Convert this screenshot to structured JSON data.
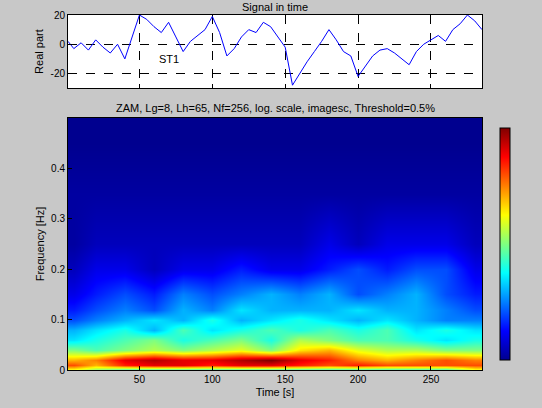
{
  "chart_data": [
    {
      "type": "line",
      "title": "Signal in time",
      "y_label": "Real part",
      "annotations": [
        {
          "text": "ST1",
          "x": 70,
          "y": -10
        }
      ],
      "color": "#0000ff",
      "x": [
        1,
        5,
        10,
        15,
        20,
        25,
        30,
        35,
        40,
        45,
        50,
        55,
        60,
        65,
        70,
        75,
        80,
        85,
        90,
        95,
        100,
        105,
        110,
        115,
        120,
        125,
        130,
        135,
        140,
        145,
        150,
        155,
        160,
        165,
        170,
        175,
        180,
        185,
        190,
        195,
        200,
        205,
        210,
        215,
        220,
        225,
        230,
        235,
        240,
        245,
        250,
        255,
        260,
        265,
        270,
        275,
        280,
        285
      ],
      "values": [
        2,
        -3,
        1,
        -4,
        3,
        -2,
        -6,
        0,
        -10,
        5,
        20,
        17,
        12,
        8,
        15,
        5,
        -5,
        2,
        6,
        10,
        19,
        8,
        -8,
        -3,
        5,
        10,
        8,
        15,
        12,
        5,
        -2,
        -28,
        -20,
        -12,
        -5,
        2,
        10,
        3,
        -5,
        -8,
        -22,
        -15,
        -8,
        -4,
        -3,
        -6,
        -10,
        -14,
        -5,
        0,
        3,
        6,
        2,
        10,
        14,
        20,
        16,
        10
      ],
      "xlim": [
        1,
        285
      ],
      "xticks": [
        50,
        100,
        150,
        200,
        250
      ],
      "ylim": [
        -30,
        20
      ],
      "yticks": [
        -20,
        0,
        20
      ],
      "grid": true,
      "tick_labels": "y"
    },
    {
      "type": "heatmap",
      "title": "ZAM, Lg=8, Lh=65, Nf=256, log. scale, imagesc, Threshold=0.5%",
      "x_label": "Time [s]",
      "y_label": "Frequency [Hz]",
      "x": [
        5,
        20,
        40,
        60,
        80,
        100,
        120,
        140,
        160,
        180,
        200,
        220,
        240,
        260,
        280
      ],
      "y": [
        0,
        0.01,
        0.02,
        0.04,
        0.06,
        0.08,
        0.1,
        0.12,
        0.15,
        0.2,
        0.25,
        0.35,
        0.45
      ],
      "z": [
        [
          0.6,
          0.5,
          0.4,
          0.4,
          0.4,
          0.4,
          0.4,
          0.4,
          0.4,
          0.4,
          0.4,
          0.4,
          0.4,
          0.4,
          0.6
        ],
        [
          0.8,
          0.7,
          0.85,
          0.9,
          0.9,
          0.85,
          0.9,
          0.9,
          0.85,
          0.8,
          0.85,
          0.8,
          0.8,
          0.8,
          0.8
        ],
        [
          0.7,
          0.75,
          0.9,
          0.95,
          0.9,
          0.9,
          0.95,
          1.0,
          0.9,
          0.85,
          0.75,
          0.7,
          0.75,
          0.8,
          0.75
        ],
        [
          0.5,
          0.45,
          0.5,
          0.55,
          0.5,
          0.55,
          0.6,
          0.5,
          0.65,
          0.7,
          0.6,
          0.55,
          0.55,
          0.5,
          0.5
        ],
        [
          0.35,
          0.4,
          0.45,
          0.5,
          0.4,
          0.45,
          0.5,
          0.4,
          0.55,
          0.5,
          0.45,
          0.45,
          0.4,
          0.35,
          0.4
        ],
        [
          0.3,
          0.35,
          0.4,
          0.3,
          0.45,
          0.35,
          0.4,
          0.45,
          0.4,
          0.45,
          0.4,
          0.45,
          0.35,
          0.4,
          0.35
        ],
        [
          0.2,
          0.25,
          0.3,
          0.35,
          0.3,
          0.4,
          0.3,
          0.35,
          0.4,
          0.35,
          0.3,
          0.35,
          0.3,
          0.25,
          0.25
        ],
        [
          0.15,
          0.2,
          0.25,
          0.2,
          0.3,
          0.25,
          0.35,
          0.3,
          0.3,
          0.3,
          0.35,
          0.3,
          0.3,
          0.25,
          0.2
        ],
        [
          0.1,
          0.15,
          0.2,
          0.15,
          0.25,
          0.2,
          0.25,
          0.3,
          0.25,
          0.3,
          0.2,
          0.25,
          0.3,
          0.2,
          0.15
        ],
        [
          0.05,
          0.1,
          0.1,
          0.05,
          0.1,
          0.1,
          0.15,
          0.1,
          0.1,
          0.15,
          0.2,
          0.15,
          0.2,
          0.2,
          0.1
        ],
        [
          0.02,
          0.05,
          0.05,
          0.05,
          0.05,
          0.05,
          0.05,
          0.05,
          0.05,
          0.1,
          0.05,
          0.1,
          0.1,
          0.1,
          0.05
        ],
        [
          0.02,
          0.02,
          0.02,
          0.02,
          0.02,
          0.02,
          0.02,
          0.02,
          0.02,
          0.02,
          0.02,
          0.02,
          0.02,
          0.02,
          0.02
        ],
        [
          0,
          0,
          0,
          0,
          0,
          0,
          0,
          0,
          0,
          0,
          0,
          0,
          0,
          0,
          0
        ]
      ],
      "zlim": [
        0,
        1
      ],
      "xlim": [
        1,
        285
      ],
      "xticks": [
        50,
        100,
        150,
        200,
        250
      ],
      "ylim": [
        0,
        0.5
      ],
      "yticks": [
        0,
        0.1,
        0.2,
        0.3,
        0.4
      ],
      "grid": true
    }
  ]
}
